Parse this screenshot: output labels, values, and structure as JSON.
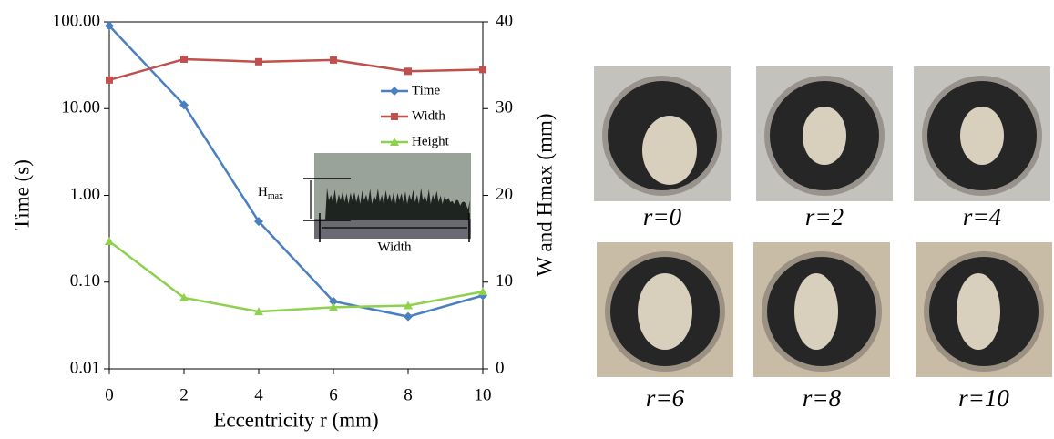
{
  "chart_data": {
    "type": "line",
    "xlabel": "Eccentricity r (mm)",
    "ylabel": "Time (s)",
    "y2label": "W and Hmax (mm)",
    "x": [
      0,
      2,
      4,
      6,
      8,
      10
    ],
    "xlim": [
      0,
      10
    ],
    "xticks": [
      0,
      2,
      4,
      6,
      8,
      10
    ],
    "ylim": [
      0.01,
      100
    ],
    "yscale": "log",
    "yticks": [
      {
        "value": 0.01,
        "label": "0.01"
      },
      {
        "value": 0.1,
        "label": "0.10"
      },
      {
        "value": 1,
        "label": "1.00"
      },
      {
        "value": 10,
        "label": "10.00"
      },
      {
        "value": 100,
        "label": "100.00"
      }
    ],
    "y2lim": [
      0,
      40
    ],
    "y2ticks": [
      0,
      10,
      20,
      30,
      40
    ],
    "legend": "upper right",
    "series": [
      {
        "name": "Time",
        "color": "#4a7fc1",
        "marker": "diamond",
        "values": [
          90,
          11,
          0.5,
          0.06,
          0.04,
          0.07
        ]
      },
      {
        "name": "Width",
        "color": "#c0504d",
        "marker": "square",
        "axis": "y2",
        "values": [
          33.3,
          35.7,
          35.4,
          35.6,
          34.3,
          34.5
        ]
      },
      {
        "name": "Height",
        "color": "#8fd14f",
        "marker": "triangle",
        "axis": "y2",
        "values": [
          14.7,
          8.2,
          6.6,
          7.1,
          7.3,
          8.9
        ]
      }
    ],
    "inset": {
      "height_label": "H",
      "height_sub": "max",
      "width_label": "Width"
    }
  },
  "photos": [
    {
      "label": "r=0"
    },
    {
      "label": "r=2"
    },
    {
      "label": "r=4"
    },
    {
      "label": "r=6"
    },
    {
      "label": "r=8"
    },
    {
      "label": "r=10"
    }
  ]
}
